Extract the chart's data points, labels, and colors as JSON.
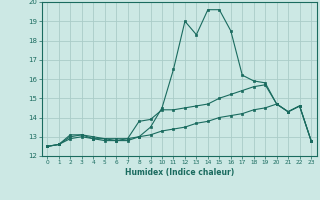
{
  "xlabel": "Humidex (Indice chaleur)",
  "ylabel": "",
  "bg_color": "#cce8e4",
  "line_color": "#1a6b5f",
  "grid_color": "#aaccc8",
  "x_values": [
    0,
    1,
    2,
    3,
    4,
    5,
    6,
    7,
    8,
    9,
    10,
    11,
    12,
    13,
    14,
    15,
    16,
    17,
    18,
    19,
    20,
    21,
    22,
    23
  ],
  "line1": [
    12.5,
    12.6,
    13.1,
    13.1,
    12.9,
    12.8,
    12.8,
    12.8,
    13.0,
    13.5,
    14.5,
    16.5,
    19.0,
    18.3,
    19.6,
    19.6,
    18.5,
    16.2,
    15.9,
    15.8,
    14.7,
    14.3,
    14.6,
    12.8
  ],
  "line2": [
    12.5,
    12.6,
    13.0,
    13.1,
    13.0,
    12.9,
    12.9,
    12.9,
    13.8,
    13.9,
    14.4,
    14.4,
    14.5,
    14.6,
    14.7,
    15.0,
    15.2,
    15.4,
    15.6,
    15.7,
    14.7,
    14.3,
    14.6,
    12.8
  ],
  "line3": [
    12.5,
    12.6,
    12.9,
    13.0,
    12.9,
    12.9,
    12.8,
    12.9,
    13.0,
    13.1,
    13.3,
    13.4,
    13.5,
    13.7,
    13.8,
    14.0,
    14.1,
    14.2,
    14.4,
    14.5,
    14.7,
    14.3,
    14.6,
    12.8
  ],
  "ylim": [
    12,
    20
  ],
  "xlim": [
    -0.5,
    23.5
  ],
  "yticks": [
    12,
    13,
    14,
    15,
    16,
    17,
    18,
    19,
    20
  ],
  "xticks": [
    0,
    1,
    2,
    3,
    4,
    5,
    6,
    7,
    8,
    9,
    10,
    11,
    12,
    13,
    14,
    15,
    16,
    17,
    18,
    19,
    20,
    21,
    22,
    23
  ]
}
